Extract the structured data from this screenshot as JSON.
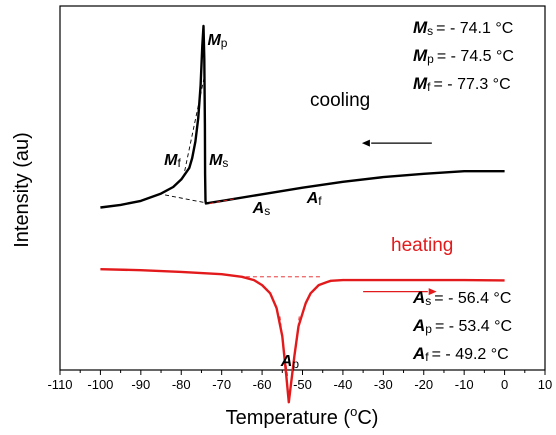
{
  "chart_data": {
    "type": "line",
    "xlabel": "Temperature (°C)",
    "xlabel_parts": {
      "pre": "Temperature (",
      "sup": "o",
      "post": "C)"
    },
    "ylabel": "Intensity (au)",
    "xlim": [
      -110,
      10
    ],
    "x_ticks": [
      -110,
      -100,
      -90,
      -80,
      -70,
      -60,
      -50,
      -40,
      -30,
      -20,
      -10,
      0,
      10
    ],
    "grid": false,
    "series": [
      {
        "color": "#000000",
        "x": [
          -100,
          -95,
          -90,
          -85,
          -82,
          -80,
          -78,
          -77.3,
          -76.5,
          -75.8,
          -75.2,
          -74.8,
          -74.5,
          -74.3,
          -74.15,
          -74.1,
          -74.0,
          -73.9,
          -73.5,
          -70,
          -60,
          -50,
          -40,
          -30,
          -20,
          -10,
          0
        ],
        "y": [
          0.25,
          0.258,
          0.27,
          0.292,
          0.312,
          0.335,
          0.37,
          0.4,
          0.45,
          0.52,
          0.62,
          0.74,
          0.8,
          0.7,
          0.5,
          0.35,
          0.27,
          0.262,
          0.263,
          0.27,
          0.29,
          0.31,
          0.328,
          0.342,
          0.352,
          0.36,
          0.36
        ]
      },
      {
        "color": "#e31a1c",
        "x": [
          -100,
          -90,
          -80,
          -70,
          -65,
          -62,
          -60,
          -58,
          -56.4,
          -55,
          -54,
          -53.4,
          -53,
          -52,
          -51,
          -49.2,
          -48,
          -46,
          -44,
          -43,
          -40,
          -30,
          -20,
          -10,
          0
        ],
        "y": [
          0.063,
          0.06,
          0.055,
          0.048,
          0.04,
          0.03,
          0.015,
          -0.01,
          -0.055,
          -0.14,
          -0.26,
          -0.34,
          -0.3,
          -0.2,
          -0.11,
          -0.04,
          -0.01,
          0.015,
          0.024,
          0.028,
          0.03,
          0.03,
          0.03,
          0.03,
          0.029
        ]
      }
    ],
    "annotations": {
      "cooling_label": "cooling",
      "heating_label": "heating",
      "peaks_cooling": [
        {
          "sym": "M",
          "sub": "p",
          "x": -74.5
        },
        {
          "sym": "M",
          "sub": "f",
          "x": -77.3
        },
        {
          "sym": "M",
          "sub": "s",
          "x": -74.1
        }
      ],
      "peaks_heating": [
        {
          "sym": "A",
          "sub": "s",
          "x": -56.4
        },
        {
          "sym": "A",
          "sub": "f",
          "x": -49.2
        },
        {
          "sym": "A",
          "sub": "p",
          "x": -53.4
        }
      ],
      "values_cooling": [
        {
          "sym": "M",
          "sub": "s",
          "text": "= - 74.1 °C"
        },
        {
          "sym": "M",
          "sub": "p",
          "text": "= - 74.5 °C"
        },
        {
          "sym": "M",
          "sub": "f",
          "text": "= - 77.3 °C"
        }
      ],
      "values_heating": [
        {
          "sym": "A",
          "sub": "s",
          "text": "= - 56.4 °C"
        },
        {
          "sym": "A",
          "sub": "p",
          "text": "= - 53.4 °C"
        },
        {
          "sym": "A",
          "sub": "f",
          "text": "= - 49.2 °C"
        }
      ]
    }
  }
}
